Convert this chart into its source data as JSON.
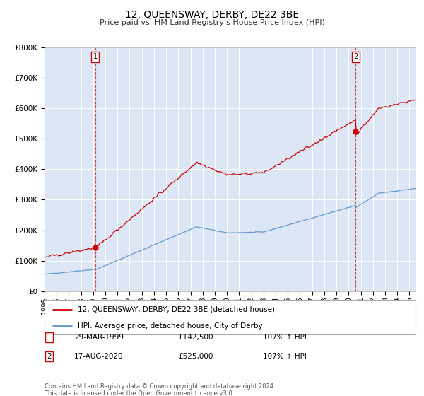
{
  "title": "12, QUEENSWAY, DERBY, DE22 3BE",
  "subtitle": "Price paid vs. HM Land Registry's House Price Index (HPI)",
  "background_color": "#dce6f5",
  "plot_bg_color": "#dce6f5",
  "red_line_label": "12, QUEENSWAY, DERBY, DE22 3BE (detached house)",
  "blue_line_label": "HPI: Average price, detached house, City of Derby",
  "red_color": "#cc0000",
  "blue_color": "#6699cc",
  "marker1_value": 142500,
  "marker1_date": "29-MAR-1999",
  "marker1_hpi": "107% ↑ HPI",
  "marker2_value": 525000,
  "marker2_date": "17-AUG-2020",
  "marker2_hpi": "107% ↑ HPI",
  "ylim": [
    0,
    800000
  ],
  "yticks": [
    0,
    100000,
    200000,
    300000,
    400000,
    500000,
    600000,
    700000,
    800000
  ],
  "copyright_text": "Contains HM Land Registry data © Crown copyright and database right 2024.\nThis data is licensed under the Open Government Licence v3.0."
}
